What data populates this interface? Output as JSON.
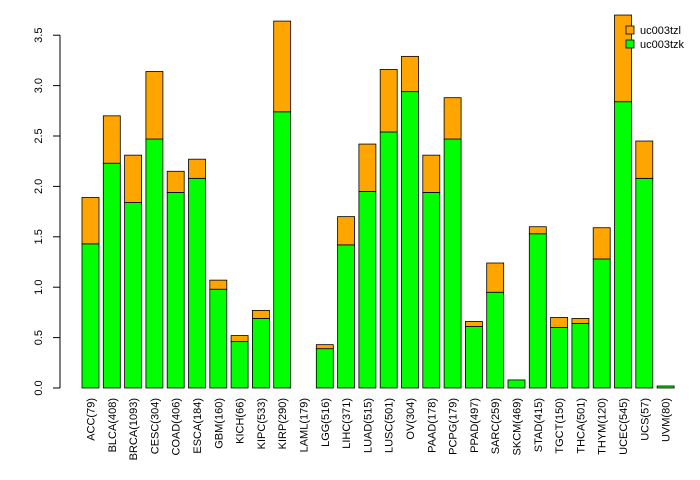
{
  "chart_data": {
    "type": "bar",
    "stacked": true,
    "categories": [
      "ACC(79)",
      "BLCA(408)",
      "BRCA(1093)",
      "CESC(304)",
      "COAD(406)",
      "ESCA(184)",
      "GBM(160)",
      "KICH(66)",
      "KIPC(533)",
      "KIRP(290)",
      "LAML(179)",
      "LGG(516)",
      "LIHC(371)",
      "LUAD(515)",
      "LUSC(501)",
      "OV(304)",
      "PAAD(178)",
      "PCPG(179)",
      "PPAD(497)",
      "SARC(259)",
      "SKCM(469)",
      "STAD(415)",
      "TGCT(150)",
      "THCA(501)",
      "THYM(120)",
      "UCEC(545)",
      "UCS(57)",
      "UVM(80)"
    ],
    "series": [
      {
        "name": "uc003tzk",
        "color": "#00ff00",
        "values": [
          1.43,
          2.23,
          1.84,
          2.47,
          1.94,
          2.08,
          0.98,
          0.46,
          0.69,
          2.74,
          0.0,
          0.39,
          1.42,
          1.95,
          2.54,
          2.94,
          1.94,
          2.47,
          0.61,
          0.95,
          0.08,
          1.53,
          0.6,
          0.64,
          1.28,
          2.84,
          2.08,
          0.02
        ]
      },
      {
        "name": "uc003tzl",
        "color": "#ffa500",
        "values": [
          0.46,
          0.47,
          0.47,
          0.67,
          0.21,
          0.19,
          0.09,
          0.06,
          0.08,
          0.9,
          0.0,
          0.04,
          0.28,
          0.47,
          0.62,
          0.35,
          0.37,
          0.41,
          0.05,
          0.29,
          0.0,
          0.07,
          0.1,
          0.05,
          0.31,
          0.86,
          0.37,
          0.0
        ]
      }
    ],
    "yticks": [
      "0.0",
      "0.5",
      "1.0",
      "1.5",
      "2.0",
      "2.5",
      "3.0",
      "3.5"
    ],
    "ylim": [
      0,
      3.7
    ],
    "legend_position": "top-right",
    "legend_order": [
      "uc003tzl",
      "uc003tzk"
    ]
  }
}
